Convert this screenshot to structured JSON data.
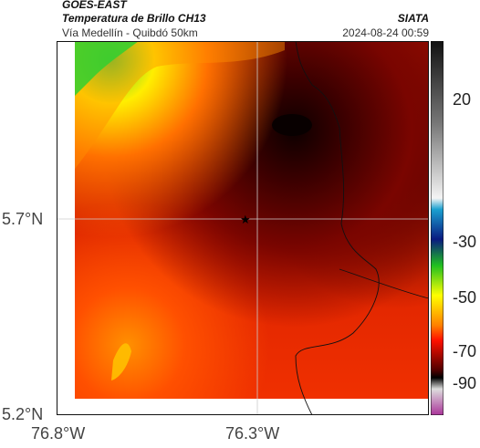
{
  "header": {
    "satellite": "GOES-EAST",
    "product": "Temperatura de Brillo CH13",
    "route": "Vía Medellín - Quibdó 50km",
    "source": "SIATA",
    "datetime": "2024-08-24 00:59"
  },
  "axes": {
    "lat_ticks": [
      "5.7°N",
      "5.2°N"
    ],
    "lon_ticks": [
      "76.8°W",
      "76.3°W"
    ]
  },
  "colorbar": {
    "ticks": [
      "20",
      "-30",
      "-50",
      "-70",
      "-90"
    ],
    "colors": [
      "#222222",
      "#ffffff",
      "#1aa0d0",
      "#0a1a80",
      "#20c020",
      "#ffff00",
      "#ff2000",
      "#500000",
      "#aa5599"
    ]
  },
  "map": {
    "marker": "star-icon",
    "colors": {
      "cold": "#2a0000",
      "mid": "#b01000",
      "warm": "#ff4000",
      "hot": "#ffe000",
      "green": "#30d030"
    }
  }
}
